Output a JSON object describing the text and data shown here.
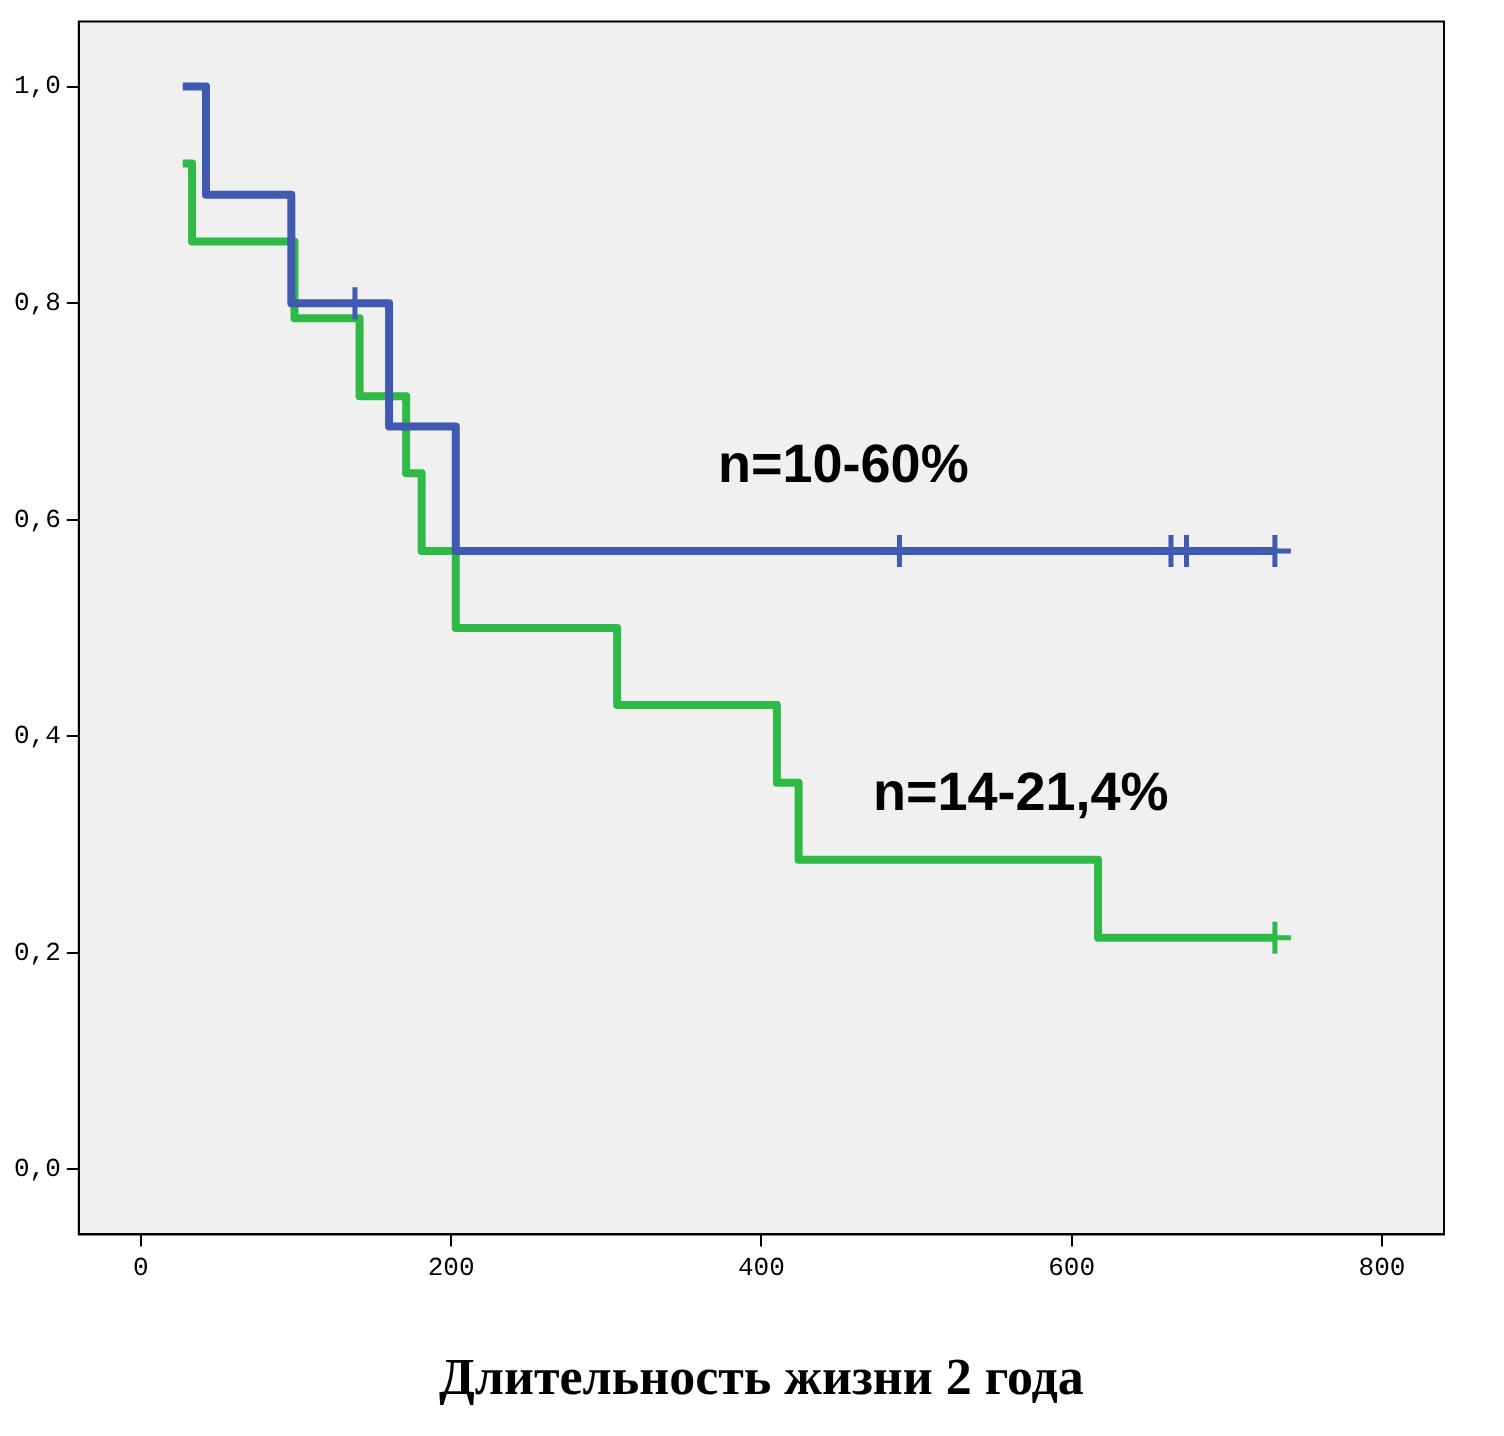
{
  "chart_data": {
    "type": "step",
    "xlabel": "Длительность жизни 2 года",
    "xlim": [
      -40,
      840
    ],
    "ylim": [
      -0.06,
      1.06
    ],
    "xticks": [
      0,
      200,
      400,
      600,
      800
    ],
    "yticks": [
      {
        "value": 0,
        "label": "0,0"
      },
      {
        "value": 0.2,
        "label": "0,2"
      },
      {
        "value": 0.4,
        "label": "0,4"
      },
      {
        "value": 0.6,
        "label": "0,6"
      },
      {
        "value": 0.8,
        "label": "0,8"
      },
      {
        "value": 1,
        "label": "1,0"
      }
    ],
    "grid": false,
    "legend": false,
    "line_style": "solid",
    "series": [
      {
        "color": "#3f5ab0",
        "x": [
          27,
          42,
          97,
          160,
          203,
          731
        ],
        "values": [
          1.0,
          0.9,
          0.8,
          0.686,
          0.571,
          0.571
        ]
      },
      {
        "color": "#2fba48",
        "x": [
          27,
          33,
          99,
          141,
          171,
          181,
          203,
          307,
          410,
          424,
          617,
          731
        ],
        "values": [
          0.929,
          0.857,
          0.786,
          0.714,
          0.643,
          0.571,
          0.5,
          0.429,
          0.357,
          0.286,
          0.214,
          0.214
        ]
      },
      {
        "type": "scatter",
        "marker": "cross",
        "color": "#3f5ab0",
        "x": [
          138,
          489,
          664,
          674,
          731
        ],
        "values": [
          0.8,
          0.571,
          0.571,
          0.571,
          0.571
        ]
      },
      {
        "type": "scatter",
        "marker": "cross",
        "color": "#2fba48",
        "x": [
          731
        ],
        "values": [
          0.214
        ]
      }
    ],
    "annotations": [
      "n=10-60%",
      "n=14-21,4%"
    ]
  }
}
